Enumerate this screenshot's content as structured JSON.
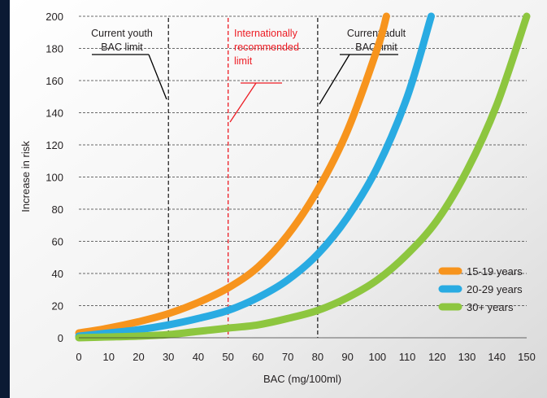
{
  "chart_data": {
    "type": "line",
    "title": "",
    "xlabel": "BAC (mg/100ml)",
    "ylabel": "Increase in risk",
    "xlim": [
      0,
      150
    ],
    "ylim": [
      0,
      200
    ],
    "x_ticks": [
      0,
      10,
      20,
      30,
      40,
      50,
      60,
      70,
      80,
      90,
      100,
      110,
      120,
      130,
      140,
      150
    ],
    "y_ticks": [
      0,
      20,
      40,
      60,
      80,
      100,
      120,
      140,
      160,
      180,
      200
    ],
    "grid": true,
    "legend_position": "bottom-right",
    "series": [
      {
        "name": "15-19 years",
        "color": "#f7941d",
        "points": [
          [
            0,
            3
          ],
          [
            10,
            6
          ],
          [
            20,
            10
          ],
          [
            30,
            15
          ],
          [
            40,
            22
          ],
          [
            50,
            31
          ],
          [
            60,
            44
          ],
          [
            70,
            64
          ],
          [
            80,
            92
          ],
          [
            90,
            129
          ],
          [
            100,
            180
          ],
          [
            103,
            200
          ]
        ]
      },
      {
        "name": "20-29 years",
        "color": "#29abe2",
        "points": [
          [
            0,
            1
          ],
          [
            10,
            3
          ],
          [
            20,
            5
          ],
          [
            30,
            8
          ],
          [
            40,
            12
          ],
          [
            50,
            17
          ],
          [
            60,
            25
          ],
          [
            70,
            36
          ],
          [
            80,
            52
          ],
          [
            90,
            75
          ],
          [
            100,
            106
          ],
          [
            110,
            150
          ],
          [
            118,
            200
          ]
        ]
      },
      {
        "name": "30+ years",
        "color": "#8dc63f",
        "points": [
          [
            0,
            0
          ],
          [
            10,
            0.5
          ],
          [
            20,
            1
          ],
          [
            30,
            2
          ],
          [
            40,
            4
          ],
          [
            50,
            6
          ],
          [
            60,
            8
          ],
          [
            70,
            12
          ],
          [
            80,
            17
          ],
          [
            90,
            25
          ],
          [
            100,
            36
          ],
          [
            110,
            52
          ],
          [
            120,
            73
          ],
          [
            130,
            104
          ],
          [
            140,
            145
          ],
          [
            150,
            200
          ]
        ]
      }
    ],
    "reference_lines": [
      {
        "x": 30,
        "label": [
          "Current youth",
          "BAC limit"
        ],
        "color": "#000000"
      },
      {
        "x": 50,
        "label": [
          "Internationally",
          "recommended",
          "limit"
        ],
        "color": "#ed1c24"
      },
      {
        "x": 80,
        "label": [
          "Current adult",
          "BAC limit"
        ],
        "color": "#000000"
      }
    ]
  }
}
